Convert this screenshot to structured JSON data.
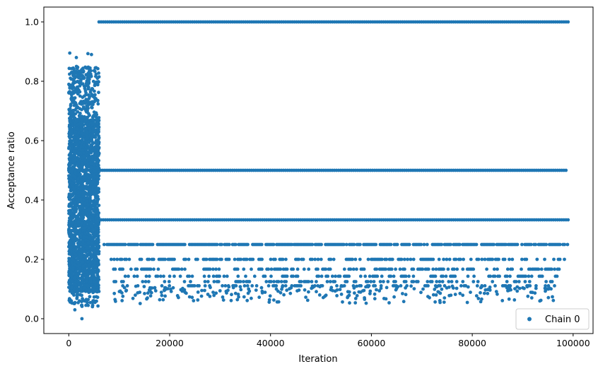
{
  "chart_data": {
    "type": "scatter",
    "title": "",
    "xlabel": "Iteration",
    "ylabel": "Acceptance ratio",
    "xlim": [
      -4950,
      103950
    ],
    "ylim": [
      -0.05,
      1.05
    ],
    "x_ticks": [
      0,
      20000,
      40000,
      60000,
      80000,
      100000
    ],
    "x_tick_labels": [
      "0",
      "20000",
      "40000",
      "60000",
      "80000",
      "100000"
    ],
    "y_ticks": [
      0.0,
      0.2,
      0.4,
      0.6,
      0.8,
      1.0
    ],
    "y_tick_labels": [
      "0.0",
      "0.2",
      "0.4",
      "0.6",
      "0.8",
      "1.0"
    ],
    "grid": false,
    "legend": {
      "position": "bottom-right",
      "entries": [
        "Chain 0"
      ]
    },
    "series": [
      {
        "name": "Chain 0",
        "color": "#1f77b4",
        "marker": "circle",
        "x_range": [
          0,
          99000
        ],
        "burn_in": {
          "x_range": [
            0,
            6000
          ],
          "y_dense_range": [
            0.05,
            0.67
          ],
          "y_extremes": [
            0.0,
            0.895
          ]
        },
        "levels": [
          {
            "y": 1.0,
            "x_range": [
              6000,
              99000
            ]
          },
          {
            "y": 0.5,
            "x_range": [
              0,
              99000
            ]
          },
          {
            "y": 0.333,
            "x_range": [
              6000,
              99000
            ]
          },
          {
            "y": 0.25,
            "x_range": [
              7000,
              99000
            ]
          },
          {
            "y": 0.2,
            "x_range": [
              7500,
              98500
            ]
          },
          {
            "y": 0.167,
            "x_range": [
              8000,
              98000
            ]
          },
          {
            "y": 0.143,
            "x_range": [
              8500,
              97500
            ]
          },
          {
            "y": 0.125,
            "x_range": [
              9000,
              97000
            ]
          },
          {
            "y": 0.111,
            "x_range": [
              9500,
              98500
            ]
          }
        ],
        "sparse_low_values": {
          "y_range": [
            0.05,
            0.11
          ]
        }
      }
    ]
  }
}
